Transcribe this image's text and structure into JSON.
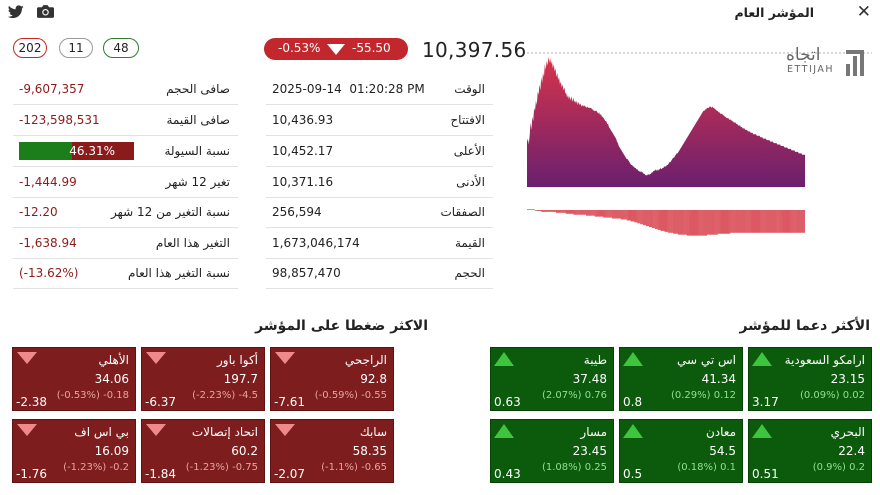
{
  "window": {
    "title": "المؤشر العام",
    "close_glyph": "✕"
  },
  "counts": {
    "declining": "202",
    "unchanged": "11",
    "advancing": "48"
  },
  "index": {
    "change_pct": "-0.53%",
    "change": "-55.50",
    "value": "10,397.56"
  },
  "left_stats": [
    {
      "label": "صافى الحجم",
      "value": "-9,607,357"
    },
    {
      "label": "صافى القيمة",
      "value": "-123,598,531"
    },
    {
      "label": "نسبة السيولة",
      "value": "46.31%",
      "fraction": 0.4631
    },
    {
      "label": "تغير 12 شهر",
      "value": "-1,444.99"
    },
    {
      "label": "نسبة التغير من 12 شهر",
      "value": "-12.20"
    },
    {
      "label": "التغير هذا العام",
      "value": "-1,638.94"
    },
    {
      "label": "نسبة التغير هذا العام",
      "value": "(-13.62%)"
    }
  ],
  "mid_stats": [
    {
      "label": "الوقت",
      "value": "2025-09-14  01:20:28 PM"
    },
    {
      "label": "الافتتاح",
      "value": "10,436.93"
    },
    {
      "label": "الأعلى",
      "value": "10,452.17"
    },
    {
      "label": "الأدنى",
      "value": "10,371.16"
    },
    {
      "label": "الصفقات",
      "value": "256,594"
    },
    {
      "label": "القيمة",
      "value": "1,673,046,174"
    },
    {
      "label": "الحجم",
      "value": "98,857,470"
    }
  ],
  "logo": {
    "arabic": "اتجاه",
    "english": "ETTIJAH"
  },
  "chart_data": {
    "type": "area",
    "reference_line": "previous close (dotted)",
    "price_series": [
      62,
      66,
      58,
      70,
      88,
      78,
      96,
      90,
      108,
      104,
      118,
      112,
      130,
      126,
      140,
      132,
      150,
      142,
      156,
      150,
      168,
      160,
      172,
      166,
      178,
      170,
      176,
      168,
      172,
      162,
      168,
      158,
      162,
      150,
      156,
      146,
      150,
      140,
      144,
      136,
      140,
      132,
      136,
      128,
      128,
      122,
      126,
      120,
      124,
      118,
      124,
      116,
      122,
      116,
      118,
      114,
      118,
      112,
      116,
      112,
      114,
      110,
      112,
      110,
      112,
      110,
      110,
      108,
      110,
      108,
      108,
      108,
      108,
      106,
      106,
      104,
      104,
      104,
      104,
      102,
      100,
      102,
      98,
      100,
      96,
      96,
      94,
      92,
      90,
      90,
      86,
      86,
      82,
      80,
      78,
      76,
      74,
      72,
      70,
      68,
      66,
      62,
      60,
      56,
      54,
      52,
      50,
      48,
      46,
      44,
      42,
      40,
      38,
      38,
      36,
      34,
      32,
      30,
      30,
      28,
      28,
      26,
      26,
      24,
      24,
      22,
      22,
      20,
      22,
      20,
      20,
      18,
      18,
      16,
      16,
      16,
      18,
      16,
      18,
      18,
      20,
      20,
      22,
      22,
      24,
      22,
      24,
      22,
      24,
      24,
      26,
      24,
      26,
      26,
      28,
      28,
      28,
      30,
      30,
      32,
      34,
      34,
      36,
      38,
      40,
      40,
      42,
      44,
      46,
      46,
      48,
      50,
      52,
      54,
      56,
      58,
      60,
      62,
      64,
      66,
      68,
      70,
      72,
      74,
      76,
      78,
      80,
      82,
      84,
      86,
      88,
      90,
      92,
      94,
      96,
      98,
      100,
      102,
      104,
      104,
      106,
      106,
      108,
      108,
      108,
      110,
      110,
      108,
      110,
      108,
      108,
      106,
      106,
      104,
      104,
      102,
      102,
      100,
      100,
      100,
      98,
      98,
      96,
      96,
      94,
      94,
      94,
      92,
      92,
      92,
      90,
      90,
      88,
      88,
      88,
      86,
      86,
      84,
      84,
      84,
      82,
      82,
      80,
      80,
      80,
      78,
      78,
      78,
      76,
      76,
      76,
      74,
      74,
      74,
      72,
      72,
      72,
      72,
      70,
      70,
      70,
      70,
      68,
      68,
      68,
      66,
      66,
      66,
      66,
      64,
      64,
      64,
      64,
      62,
      62,
      62,
      62,
      60,
      60,
      60,
      60,
      58,
      58,
      58,
      58,
      56,
      56,
      56,
      56,
      54,
      54,
      54,
      54,
      52,
      52,
      52,
      52,
      50,
      50,
      50,
      50,
      48,
      48,
      48,
      48,
      46,
      46,
      46,
      46,
      44,
      44,
      44,
      44
    ],
    "flow_series": [
      1,
      1,
      1,
      1,
      1,
      1,
      1,
      1,
      0,
      0,
      -1,
      -1,
      -1,
      -1,
      -1,
      -2,
      -2,
      -2,
      -2,
      -2,
      -2,
      -2,
      -2,
      -2,
      -2,
      -2,
      -2,
      -2,
      -2,
      -2,
      -3,
      -3,
      -3,
      -3,
      -3,
      -3,
      -3,
      -3,
      -3,
      -3,
      -4,
      -4,
      -4,
      -4,
      -4,
      -4,
      -4,
      -4,
      -5,
      -5,
      -5,
      -5,
      -5,
      -5,
      -5,
      -5,
      -5,
      -5,
      -5,
      -5,
      -5,
      -6,
      -6,
      -6,
      -6,
      -6,
      -6,
      -6,
      -6,
      -6,
      -7,
      -7,
      -7,
      -7,
      -7,
      -7,
      -7,
      -7,
      -7,
      -8,
      -8,
      -8,
      -8,
      -8,
      -8,
      -8,
      -8,
      -8,
      -9,
      -9,
      -9,
      -9,
      -9,
      -9,
      -9,
      -9,
      -9,
      -10,
      -10,
      -10,
      -10,
      -10,
      -10,
      -11,
      -11,
      -11,
      -11,
      -12,
      -12,
      -12,
      -12,
      -13,
      -13,
      -13,
      -14,
      -14,
      -14,
      -15,
      -15,
      -15,
      -16,
      -16,
      -16,
      -17,
      -17,
      -17,
      -18,
      -18,
      -18,
      -19,
      -19,
      -19,
      -20,
      -20,
      -20,
      -21,
      -21,
      -21,
      -22,
      -22,
      -22,
      -22,
      -23,
      -23,
      -23,
      -23,
      -24,
      -24,
      -24,
      -24,
      -24,
      -25,
      -25,
      -25,
      -25,
      -25,
      -26,
      -26,
      -26,
      -26,
      -26,
      -26,
      -26,
      -26,
      -26,
      -27,
      -27,
      -27,
      -27,
      -27,
      -27,
      -27,
      -27,
      -27,
      -27,
      -27,
      -27,
      -27,
      -27,
      -27,
      -27,
      -27,
      -27,
      -27,
      -27,
      -27,
      -26,
      -26,
      -26,
      -26,
      -26,
      -26,
      -26,
      -26,
      -26,
      -26,
      -26,
      -25,
      -25,
      -25,
      -25,
      -25,
      -25,
      -25,
      -25,
      -25,
      -25,
      -25,
      -25,
      -25,
      -24,
      -24,
      -24,
      -24,
      -24,
      -24,
      -24,
      -24,
      -24,
      -24,
      -24,
      -24,
      -24,
      -24,
      -24,
      -24,
      -24,
      -24,
      -24,
      -24,
      -24,
      -24,
      -24,
      -24,
      -24,
      -24,
      -24,
      -24,
      -24,
      -24,
      -24,
      -24,
      -24,
      -24,
      -24,
      -24,
      -24,
      -24,
      -24,
      -24,
      -24,
      -24,
      -24,
      -24,
      -24,
      -24,
      -24,
      -24,
      -24,
      -24,
      -24,
      -24,
      -24,
      -24,
      -24,
      -24,
      -24,
      -24,
      -24,
      -24,
      -24,
      -24,
      -24,
      -24,
      -24,
      -24,
      -24,
      -24,
      -24,
      -24,
      -24,
      -24,
      -24,
      -24,
      -24,
      -24,
      -24
    ],
    "colors": {
      "top": "#d8344a",
      "bottom": "#6a1f6e",
      "flow_negative": "#d3303c",
      "flow_positive": "#3bb54a"
    }
  },
  "gainers": {
    "title": "الأكثر دعما للمؤشر",
    "tiles": [
      {
        "name": "ارامكو السعودية",
        "price": "23.15",
        "sub": "(0.09%) 0.02",
        "impact": "3.17"
      },
      {
        "name": "اس تي سي",
        "price": "41.34",
        "sub": "(0.29%) 0.12",
        "impact": "0.8"
      },
      {
        "name": "طيبة",
        "price": "37.48",
        "sub": "(2.07%) 0.76",
        "impact": "0.63"
      },
      {
        "name": "البحري",
        "price": "22.4",
        "sub": "(0.9%) 0.2",
        "impact": "0.51"
      },
      {
        "name": "معادن",
        "price": "54.5",
        "sub": "(0.18%) 0.1",
        "impact": "0.5"
      },
      {
        "name": "مسار",
        "price": "23.45",
        "sub": "(1.08%) 0.25",
        "impact": "0.43"
      }
    ]
  },
  "losers": {
    "title": "الاكثر ضغطا على المؤشر",
    "tiles": [
      {
        "name": "الراجحي",
        "price": "92.8",
        "sub": "(-0.59%) -0.55",
        "impact": "-7.61"
      },
      {
        "name": "أكوا باور",
        "price": "197.7",
        "sub": "(-2.23%) -4.5",
        "impact": "-6.37"
      },
      {
        "name": "الأهلي",
        "price": "34.06",
        "sub": "(-0.53%) -0.18",
        "impact": "-2.38"
      },
      {
        "name": "سابك",
        "price": "58.35",
        "sub": "(-1.1%) -0.65",
        "impact": "-2.07"
      },
      {
        "name": "اتحاد إتصالات",
        "price": "60.2",
        "sub": "(-1.23%) -0.75",
        "impact": "-1.84"
      },
      {
        "name": "بي اس اف",
        "price": "16.09",
        "sub": "(-1.23%) -0.2",
        "impact": "-1.76"
      }
    ]
  }
}
